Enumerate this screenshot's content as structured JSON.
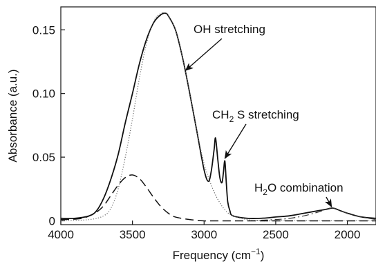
{
  "chart_data": {
    "type": "line",
    "title": "",
    "xlabel": "Frequency (cm⁻¹)",
    "xlabel_parts": {
      "text": "Frequency (cm",
      "sup": "−1",
      "close": ")"
    },
    "ylabel": "Absorbance (a.u.)",
    "x_reversed": true,
    "xlim": [
      4000,
      1800
    ],
    "ylim": [
      -0.003,
      0.168
    ],
    "xticks": [
      4000,
      3500,
      3000,
      2500,
      2000
    ],
    "xtick_labels": [
      "4000",
      "3500",
      "3000",
      "2500",
      "2000"
    ],
    "yticks": [
      0,
      0.05,
      0.1,
      0.15
    ],
    "ytick_labels": [
      "0",
      "0.05",
      "0.10",
      "0.15"
    ],
    "grid": false,
    "legend": "none",
    "series": [
      {
        "style": "solid",
        "x": [
          4000,
          3900,
          3800,
          3750,
          3700,
          3650,
          3600,
          3550,
          3500,
          3450,
          3400,
          3350,
          3300,
          3270,
          3250,
          3200,
          3150,
          3100,
          3050,
          3000,
          2970,
          2950,
          2930,
          2920,
          2905,
          2890,
          2875,
          2865,
          2855,
          2845,
          2835,
          2820,
          2800,
          2700,
          2600,
          2500,
          2400,
          2300,
          2200,
          2150,
          2100,
          2050,
          2000,
          1900,
          1800
        ],
        "y": [
          0.002,
          0.002,
          0.004,
          0.008,
          0.018,
          0.033,
          0.052,
          0.077,
          0.1,
          0.124,
          0.143,
          0.156,
          0.162,
          0.163,
          0.161,
          0.15,
          0.128,
          0.1,
          0.07,
          0.04,
          0.031,
          0.039,
          0.056,
          0.065,
          0.049,
          0.034,
          0.03,
          0.038,
          0.047,
          0.03,
          0.015,
          0.008,
          0.004,
          0.002,
          0.002,
          0.003,
          0.004,
          0.006,
          0.008,
          0.009,
          0.01,
          0.008,
          0.006,
          0.003,
          0.002
        ]
      },
      {
        "style": "dotted",
        "x": [
          4000,
          3800,
          3700,
          3650,
          3600,
          3550,
          3500,
          3450,
          3400,
          3350,
          3300,
          3270,
          3250,
          3200,
          3150,
          3100,
          3050,
          3000,
          2950,
          2900,
          2850,
          2800,
          2700,
          2600,
          2500,
          2000,
          1800
        ],
        "y": [
          0,
          0.001,
          0.004,
          0.01,
          0.025,
          0.05,
          0.08,
          0.113,
          0.14,
          0.157,
          0.163,
          0.163,
          0.161,
          0.15,
          0.128,
          0.1,
          0.07,
          0.045,
          0.028,
          0.016,
          0.008,
          0.004,
          0.001,
          0,
          0,
          0,
          0
        ]
      },
      {
        "style": "dashed",
        "x": [
          4000,
          3850,
          3750,
          3700,
          3650,
          3600,
          3550,
          3500,
          3450,
          3400,
          3350,
          3300,
          3250,
          3200,
          3100,
          3000,
          2900,
          2500,
          2000,
          1800
        ],
        "y": [
          0.001,
          0.002,
          0.007,
          0.012,
          0.02,
          0.028,
          0.034,
          0.036,
          0.033,
          0.026,
          0.018,
          0.011,
          0.006,
          0.003,
          0.001,
          0,
          0,
          0,
          0,
          0
        ]
      },
      {
        "style": "dashdot",
        "x": [
          2700,
          2500,
          2400,
          2300,
          2200,
          2150,
          2100,
          2050,
          2000,
          1900,
          1800
        ],
        "y": [
          0,
          0.001,
          0.002,
          0.004,
          0.007,
          0.009,
          0.01,
          0.008,
          0.006,
          0.003,
          0.001
        ]
      }
    ],
    "annotations": [
      {
        "text": "OH stretching",
        "text_sub": "",
        "text_rest": "",
        "arrow_to": [
          3130,
          0.118
        ]
      },
      {
        "text": "CH",
        "text_sub": "2",
        "text_rest": " S stretching",
        "arrow_to": [
          2855,
          0.049
        ]
      },
      {
        "text": "H",
        "text_sub": "2",
        "text_rest": "O combination",
        "arrow_to": [
          2110,
          0.011
        ]
      }
    ]
  }
}
